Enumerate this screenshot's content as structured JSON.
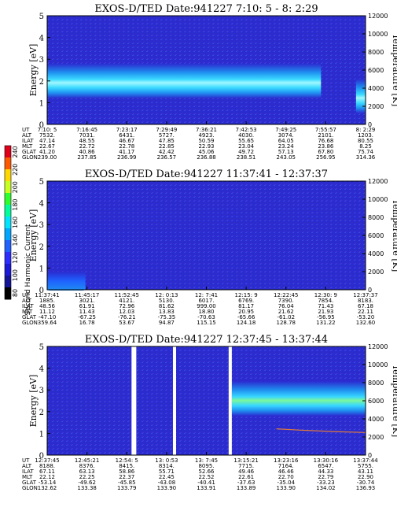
{
  "colors": {
    "background": "#2b2bd0",
    "low": "#2d2fb8",
    "speckle": "#3a55e0",
    "band_outer": "#1f8ef0",
    "band_inner": "#39d8ff",
    "band_core": "#9ff8ff",
    "panel3_band_core": "#7cf79a",
    "temperature_trace": "#e07a3a",
    "white_gap": "#ffffff"
  },
  "colorbar": {
    "label": "Second Harmonic Current",
    "ticks": [
      "240",
      "220",
      "200",
      "180",
      "160",
      "140",
      "120",
      "100",
      "80"
    ],
    "colors": [
      "#e0001a",
      "#ff5a00",
      "#ffd800",
      "#c7ff1e",
      "#2dff2d",
      "#00ff9c",
      "#00e5ff",
      "#00a6ff",
      "#1f62ff",
      "#2d2dff",
      "#1a1ad8",
      "#141496",
      "#000000"
    ]
  },
  "chart_data": [
    {
      "type": "heatmap",
      "title": "EXOS-D/TED",
      "date_label": "Date:941227",
      "time_range": "7:10: 5 - 8: 2:29",
      "ylabel": "Energy [eV]",
      "y2label": "Temperature [K]",
      "ylim": [
        0,
        5
      ],
      "y2lim": [
        0,
        12000
      ],
      "yticks": [
        "5",
        "4",
        "3",
        "2",
        "1",
        "0"
      ],
      "y2ticks": [
        "12000",
        "10000",
        "8000",
        "6000",
        "4000",
        "2000",
        "0"
      ],
      "band": {
        "segments": [
          [
            0.0,
            0.86,
            2.0
          ],
          [
            0.97,
            1.0,
            1.3
          ]
        ],
        "center_ev": 2.0
      },
      "ephemeris": {
        "rows": [
          "UT",
          "ALT",
          "ILAT",
          "MLT",
          "GLAT",
          "GLON"
        ],
        "columns": [
          [
            "7:10: 5",
            "7532.",
            "47.14",
            "22.67",
            "41.20",
            "239.00"
          ],
          [
            "7:16:45",
            "7031.",
            "48.55",
            "22.72",
            "40.86",
            "237.85"
          ],
          [
            "7:23:17",
            "6431.",
            "46.67",
            "22.78",
            "41.17",
            "236.99"
          ],
          [
            "7:29:49",
            "5727.",
            "47.85",
            "22.85",
            "42.42",
            "236.57"
          ],
          [
            "7:36:21",
            "4923.",
            "50.59",
            "22.93",
            "45.06",
            "236.88"
          ],
          [
            "7:42:53",
            "4030.",
            "55.65",
            "23.04",
            "49.72",
            "238.51"
          ],
          [
            "7:49:25",
            "3074.",
            "64.05",
            "23.24",
            "57.13",
            "243.05"
          ],
          [
            "7:55:57",
            "2101.",
            "76.68",
            "23.86",
            "67.80",
            "256.95"
          ],
          [
            "8: 2:29",
            "1203.",
            "80.55",
            "8.25",
            "75.74",
            "314.36"
          ]
        ]
      }
    },
    {
      "type": "heatmap",
      "title": "EXOS-D/TED",
      "date_label": "Date:941227",
      "time_range": "11:37:41 - 12:37:37",
      "ylabel": "Energy [eV]",
      "y2label": "Temperature [K]",
      "ylim": [
        0,
        5
      ],
      "y2lim": [
        0,
        12000
      ],
      "yticks": [
        "5",
        "4",
        "3",
        "2",
        "1",
        "0"
      ],
      "y2ticks": [
        "12000",
        "10000",
        "8000",
        "6000",
        "4000",
        "2000",
        "0"
      ],
      "band": {
        "segments": [
          [
            0.0,
            0.12,
            0.4
          ]
        ],
        "center_ev": 0.3
      },
      "ephemeris": {
        "rows": [
          "UT",
          "ALT",
          "ILAT",
          "MLT",
          "GLAT",
          "GLON"
        ],
        "columns": [
          [
            "11:37:41",
            "1885.",
            "48.56",
            "11.12",
            "-47.10",
            "359.64"
          ],
          [
            "11:45:17",
            "3021.",
            "61.91",
            "11.43",
            "-67.25",
            "16.78"
          ],
          [
            "11:52:45",
            "4121.",
            "72.96",
            "12.03",
            "-76.21",
            "53.67"
          ],
          [
            "12: 0:13",
            "5130.",
            "81.62",
            "13.83",
            "-75.35",
            "94.87"
          ],
          [
            "12: 7:41",
            "6017.",
            "999.00",
            "18.80",
            "-70.63",
            "115.15"
          ],
          [
            "12:15: 9",
            "6769.",
            "81.17",
            "20.95",
            "-65.66",
            "124.18"
          ],
          [
            "12:22:45",
            "7390.",
            "76.04",
            "21.62",
            "-61.02",
            "128.78"
          ],
          [
            "12:30: 9",
            "7854.",
            "71.43",
            "21.93",
            "-56.95",
            "131.22"
          ],
          [
            "12:37:37",
            "8183.",
            "67.18",
            "22.11",
            "-53.20",
            "132.60"
          ]
        ]
      }
    },
    {
      "type": "heatmap",
      "title": "EXOS-D/TED",
      "date_label": "Date:941227",
      "time_range": "12:37:45 - 13:37:44",
      "ylabel": "Energy [eV]",
      "y2label": "Temperature [K]",
      "ylim": [
        0,
        5
      ],
      "y2lim": [
        0,
        12000
      ],
      "yticks": [
        "5",
        "4",
        "3",
        "2",
        "1",
        "0"
      ],
      "y2ticks": [
        "12000",
        "10000",
        "8000",
        "6000",
        "4000",
        "2000",
        "0"
      ],
      "band": {
        "segments": [
          [
            0.58,
            1.0,
            2.6
          ]
        ],
        "center_ev": 2.6
      },
      "temperature_trace_k": {
        "x_fraction": [
          0.72,
          0.8,
          0.9,
          1.0
        ],
        "values": [
          2900,
          2750,
          2600,
          2500
        ]
      },
      "ephemeris": {
        "rows": [
          "UT",
          "ALT",
          "ILAT",
          "MLT",
          "GLAT",
          "GLON"
        ],
        "columns": [
          [
            "12:37:45",
            "8188.",
            "67.11",
            "22.12",
            "-53.14",
            "132.62"
          ],
          [
            "12:45:21",
            "8376.",
            "63.13",
            "22.25",
            "-49.62",
            "133.38"
          ],
          [
            "12:54: 5",
            "8415.",
            "58.86",
            "22.37",
            "-45.85",
            "133.79"
          ],
          [
            "13: 0:53",
            "8314.",
            "55.71",
            "22.45",
            "-43.08",
            "133.90"
          ],
          [
            "13: 7:45",
            "8095.",
            "52.66",
            "22.52",
            "-40.41",
            "133.91"
          ],
          [
            "13:15:21",
            "7715.",
            "49.46",
            "22.61",
            "-37.63",
            "133.89"
          ],
          [
            "13:23:16",
            "7164.",
            "46.46",
            "22.70",
            "-35.04",
            "133.90"
          ],
          [
            "13:30:16",
            "6547.",
            "44.33",
            "22.79",
            "-33.23",
            "134.02"
          ],
          [
            "13:37:44",
            "5755.",
            "43.11",
            "22.90",
            "-30.74",
            "136.93"
          ]
        ]
      }
    }
  ]
}
